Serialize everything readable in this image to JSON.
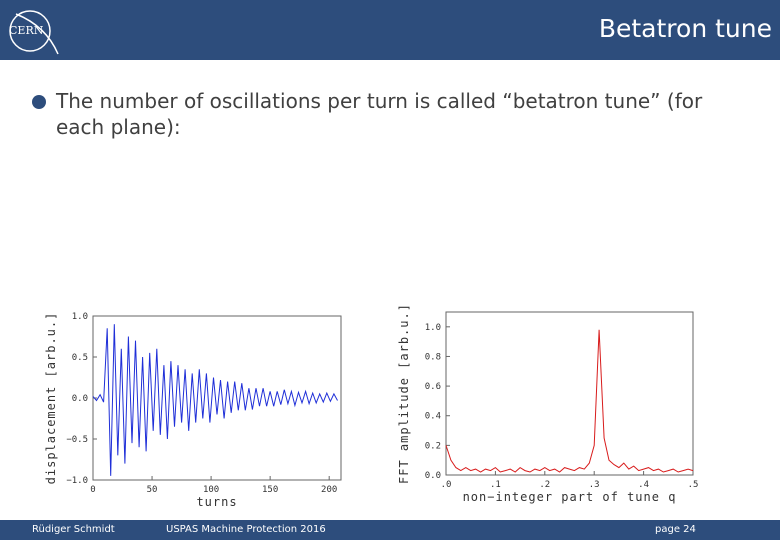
{
  "header": {
    "logo": "CERN",
    "title": "Betatron tune"
  },
  "body": {
    "bullet": "The number of oscillations per turn is called “betatron tune” (for each plane):"
  },
  "footer": {
    "author": "Rüdiger Schmidt",
    "event": "USPAS Machine Protection 2016",
    "page": "page 24"
  },
  "chart_data": [
    {
      "type": "line",
      "xlabel": "turns",
      "ylabel": "displacement [arb.u.]",
      "color": "#1f2fd8",
      "x": [
        0,
        3,
        6,
        9,
        12,
        15,
        18,
        21,
        24,
        27,
        30,
        33,
        36,
        39,
        42,
        45,
        48,
        51,
        54,
        57,
        60,
        63,
        66,
        69,
        72,
        75,
        78,
        81,
        84,
        87,
        90,
        93,
        96,
        99,
        102,
        105,
        108,
        111,
        114,
        117,
        120,
        123,
        126,
        129,
        132,
        135,
        138,
        141,
        144,
        147,
        150,
        153,
        156,
        159,
        162,
        165,
        168,
        171,
        174,
        177,
        180,
        183,
        186,
        189,
        192,
        195,
        198,
        201,
        204,
        207
      ],
      "values": [
        0.02,
        -0.03,
        0.04,
        -0.05,
        0.85,
        -0.95,
        0.9,
        -0.7,
        0.6,
        -0.8,
        0.75,
        -0.55,
        0.7,
        -0.6,
        0.5,
        -0.65,
        0.55,
        -0.4,
        0.6,
        -0.45,
        0.4,
        -0.5,
        0.45,
        -0.35,
        0.4,
        -0.3,
        0.35,
        -0.4,
        0.3,
        -0.3,
        0.35,
        -0.25,
        0.3,
        -0.3,
        0.25,
        -0.2,
        0.22,
        -0.25,
        0.2,
        -0.18,
        0.2,
        -0.15,
        0.18,
        -0.15,
        0.12,
        -0.14,
        0.12,
        -0.1,
        0.12,
        -0.1,
        0.08,
        -0.1,
        0.08,
        -0.08,
        0.1,
        -0.07,
        0.08,
        -0.09,
        0.07,
        -0.06,
        0.08,
        -0.07,
        0.06,
        -0.06,
        0.05,
        -0.05,
        0.06,
        -0.04,
        0.05,
        -0.03
      ],
      "xlim": [
        0,
        210
      ],
      "xticks": [
        0,
        50,
        100,
        150,
        200
      ],
      "ylim": [
        -1,
        1
      ],
      "yticks": [
        {
          "value": -1,
          "label": "−1.0"
        },
        {
          "value": -0.5,
          "label": "−0.5"
        },
        {
          "value": 0,
          "label": "0.0"
        },
        {
          "value": 0.5,
          "label": "0.5"
        },
        {
          "value": 1,
          "label": "1.0"
        }
      ]
    },
    {
      "type": "line",
      "xlabel": "non−integer part of tune q",
      "ylabel": "FFT amplitude [arb.u.]",
      "color": "#d81c1c",
      "x": [
        0,
        0.01,
        0.02,
        0.03,
        0.04,
        0.05,
        0.06,
        0.07,
        0.08,
        0.09,
        0.1,
        0.11,
        0.12,
        0.13,
        0.14,
        0.15,
        0.16,
        0.17,
        0.18,
        0.19,
        0.2,
        0.21,
        0.22,
        0.23,
        0.24,
        0.25,
        0.26,
        0.27,
        0.28,
        0.29,
        0.3,
        0.31,
        0.32,
        0.33,
        0.34,
        0.35,
        0.36,
        0.37,
        0.38,
        0.39,
        0.4,
        0.41,
        0.42,
        0.43,
        0.44,
        0.45,
        0.46,
        0.47,
        0.48,
        0.49,
        0.5
      ],
      "values": [
        0.2,
        0.1,
        0.05,
        0.03,
        0.05,
        0.03,
        0.04,
        0.02,
        0.04,
        0.03,
        0.05,
        0.02,
        0.03,
        0.04,
        0.02,
        0.05,
        0.03,
        0.02,
        0.04,
        0.03,
        0.05,
        0.03,
        0.04,
        0.02,
        0.05,
        0.04,
        0.03,
        0.05,
        0.04,
        0.08,
        0.2,
        0.98,
        0.25,
        0.1,
        0.07,
        0.05,
        0.08,
        0.04,
        0.06,
        0.03,
        0.04,
        0.05,
        0.03,
        0.04,
        0.02,
        0.03,
        0.04,
        0.02,
        0.03,
        0.04,
        0.03
      ],
      "xlim": [
        0,
        0.5
      ],
      "xticks": [
        {
          "value": 0,
          "label": ".0"
        },
        {
          "value": 0.1,
          "label": ".1"
        },
        {
          "value": 0.2,
          "label": ".2"
        },
        {
          "value": 0.3,
          "label": ".3"
        },
        {
          "value": 0.4,
          "label": ".4"
        },
        {
          "value": 0.5,
          "label": ".5"
        }
      ],
      "ylim": [
        0,
        1.1
      ],
      "yticks": [
        {
          "value": 0,
          "label": "0.0"
        },
        {
          "value": 0.2,
          "label": "0.2"
        },
        {
          "value": 0.4,
          "label": "0.4"
        },
        {
          "value": 0.6,
          "label": "0.6"
        },
        {
          "value": 0.8,
          "label": "0.8"
        },
        {
          "value": 1,
          "label": "1.0"
        }
      ]
    }
  ]
}
